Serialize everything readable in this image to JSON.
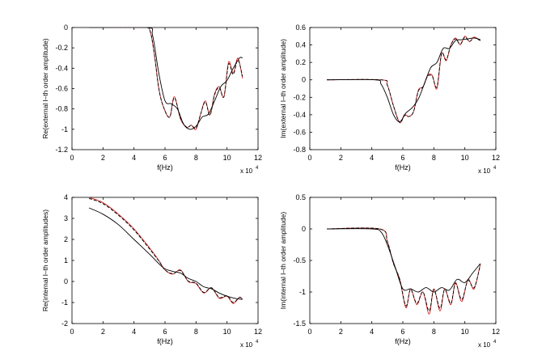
{
  "chart_data": [
    {
      "type": "line",
      "xlabel": "f(Hz)",
      "ylabel": "Re(external l–th order amplitude)",
      "x_multiplier": "x 10",
      "x_exponent": "4",
      "xlim": [
        0,
        12
      ],
      "ylim": [
        -1.2,
        0
      ],
      "xticks": [
        0,
        2,
        4,
        6,
        8,
        10,
        12
      ],
      "xtick_labels": [
        "0",
        "2",
        "4",
        "6",
        "8",
        "10",
        "12"
      ],
      "yticks": [
        -1.2,
        -1,
        -0.8,
        -0.6,
        -0.4,
        -0.2,
        0
      ],
      "ytick_labels": [
        "-1.2",
        "-1",
        "-0.8",
        "-0.6",
        "-0.4",
        "-0.2",
        "0"
      ],
      "grid": false,
      "series": [
        {
          "color": "#d62020",
          "dash": "solid",
          "x": [
            1.1,
            4.5,
            5.0,
            5.3,
            5.6,
            5.9,
            6.3,
            6.6,
            7.0,
            7.4,
            7.7,
            8.0,
            8.3,
            8.6,
            8.9,
            9.2,
            9.5,
            9.8,
            10.1,
            10.4,
            10.7,
            11.0
          ],
          "y": [
            0,
            0,
            -0.02,
            -0.25,
            -0.6,
            -0.78,
            -0.88,
            -0.68,
            -0.9,
            -0.98,
            -0.96,
            -1.0,
            -0.85,
            -0.72,
            -0.86,
            -0.65,
            -0.58,
            -0.68,
            -0.34,
            -0.45,
            -0.3,
            -0.5
          ]
        },
        {
          "color": "#000000",
          "dash": "dashed",
          "x": [
            1.1,
            4.5,
            5.0,
            5.3,
            5.6,
            5.9,
            6.3,
            6.6,
            7.0,
            7.4,
            7.7,
            8.0,
            8.3,
            8.6,
            8.9,
            9.2,
            9.5,
            9.8,
            10.1,
            10.4,
            10.7,
            11.0
          ],
          "y": [
            0,
            0,
            -0.02,
            -0.25,
            -0.6,
            -0.78,
            -0.88,
            -0.69,
            -0.89,
            -0.98,
            -0.96,
            -0.99,
            -0.85,
            -0.73,
            -0.86,
            -0.66,
            -0.59,
            -0.68,
            -0.36,
            -0.46,
            -0.32,
            -0.48
          ]
        },
        {
          "color": "#000000",
          "dash": "solid",
          "x": [
            1.1,
            4.8,
            5.2,
            5.6,
            6.0,
            6.4,
            6.8,
            7.2,
            7.6,
            8.0,
            8.4,
            8.8,
            9.2,
            9.6,
            10.0,
            10.4,
            10.8,
            11.0
          ],
          "y": [
            0,
            0,
            -0.08,
            -0.45,
            -0.72,
            -0.75,
            -0.8,
            -0.95,
            -1.0,
            -0.97,
            -0.88,
            -0.85,
            -0.72,
            -0.58,
            -0.52,
            -0.4,
            -0.3,
            -0.3
          ]
        }
      ]
    },
    {
      "type": "line",
      "xlabel": "f(Hz)",
      "ylabel": "Im(external l–th order amplitude)",
      "x_multiplier": "x 10",
      "x_exponent": "4",
      "xlim": [
        0,
        12
      ],
      "ylim": [
        -0.8,
        0.6
      ],
      "xticks": [
        0,
        2,
        4,
        6,
        8,
        10,
        12
      ],
      "xtick_labels": [
        "0",
        "2",
        "4",
        "6",
        "8",
        "10",
        "12"
      ],
      "yticks": [
        -0.8,
        -0.6,
        -0.4,
        -0.2,
        0,
        0.2,
        0.4,
        0.6
      ],
      "ytick_labels": [
        "-0.8",
        "-0.6",
        "-0.4",
        "-0.2",
        "0",
        "0.2",
        "0.4",
        "0.6"
      ],
      "grid": false,
      "series": [
        {
          "color": "#d62020",
          "dash": "solid",
          "x": [
            1.1,
            4.6,
            5.0,
            5.4,
            5.8,
            6.1,
            6.4,
            6.7,
            7.0,
            7.3,
            7.6,
            7.9,
            8.2,
            8.5,
            8.8,
            9.1,
            9.4,
            9.7,
            10.0,
            10.3,
            10.6,
            11.0
          ],
          "y": [
            0,
            0,
            -0.06,
            -0.3,
            -0.49,
            -0.4,
            -0.42,
            -0.36,
            -0.12,
            -0.08,
            0.05,
            0.05,
            -0.1,
            0.3,
            0.22,
            0.4,
            0.48,
            0.4,
            0.5,
            0.44,
            0.49,
            0.45
          ]
        },
        {
          "color": "#000000",
          "dash": "dashed",
          "x": [
            1.1,
            4.6,
            5.0,
            5.4,
            5.8,
            6.1,
            6.4,
            6.7,
            7.0,
            7.3,
            7.6,
            7.9,
            8.2,
            8.5,
            8.8,
            9.1,
            9.4,
            9.7,
            10.0,
            10.3,
            10.6,
            11.0
          ],
          "y": [
            0,
            0,
            -0.06,
            -0.3,
            -0.49,
            -0.41,
            -0.42,
            -0.36,
            -0.13,
            -0.08,
            0.04,
            0.04,
            -0.08,
            0.3,
            0.23,
            0.4,
            0.47,
            0.41,
            0.49,
            0.44,
            0.48,
            0.45
          ]
        },
        {
          "color": "#000000",
          "dash": "solid",
          "x": [
            1.1,
            4.2,
            4.6,
            5.0,
            5.4,
            5.8,
            6.2,
            6.6,
            7.0,
            7.4,
            7.8,
            8.2,
            8.6,
            9.0,
            9.4,
            9.8,
            10.2,
            10.6,
            11.0
          ],
          "y": [
            0,
            0,
            -0.05,
            -0.2,
            -0.4,
            -0.48,
            -0.38,
            -0.32,
            -0.22,
            -0.04,
            0.14,
            0.2,
            0.36,
            0.36,
            0.45,
            0.46,
            0.47,
            0.48,
            0.46
          ]
        }
      ]
    },
    {
      "type": "line",
      "xlabel": "f(Hz)",
      "ylabel": "Re(internal l–th order amplitudes)",
      "x_multiplier": "x 10",
      "x_exponent": "4",
      "xlim": [
        0,
        12
      ],
      "ylim": [
        -2,
        4
      ],
      "xticks": [
        0,
        2,
        4,
        6,
        8,
        10,
        12
      ],
      "xtick_labels": [
        "0",
        "2",
        "4",
        "6",
        "8",
        "10",
        "12"
      ],
      "yticks": [
        -2,
        -1,
        0,
        1,
        2,
        3,
        4
      ],
      "ytick_labels": [
        "-2",
        "-1",
        "0",
        "1",
        "2",
        "3",
        "4"
      ],
      "grid": false,
      "series": [
        {
          "color": "#d62020",
          "dash": "solid",
          "x": [
            1.1,
            2.0,
            3.0,
            4.0,
            5.0,
            5.6,
            6.0,
            6.5,
            7.0,
            7.5,
            8.0,
            8.5,
            9.0,
            9.5,
            10.0,
            10.4,
            10.8,
            11.0
          ],
          "y": [
            4.0,
            3.75,
            3.2,
            2.5,
            1.6,
            1.0,
            0.55,
            0.35,
            0.55,
            0.0,
            -0.1,
            -0.55,
            -0.3,
            -0.8,
            -0.7,
            -1.05,
            -0.75,
            -0.85
          ]
        },
        {
          "color": "#000000",
          "dash": "dashed",
          "x": [
            1.1,
            2.0,
            3.0,
            4.0,
            5.0,
            5.6,
            6.0,
            6.5,
            7.0,
            7.5,
            8.0,
            8.5,
            9.0,
            9.5,
            10.0,
            10.4,
            10.8,
            11.0
          ],
          "y": [
            3.95,
            3.7,
            3.15,
            2.45,
            1.55,
            0.98,
            0.55,
            0.37,
            0.52,
            0.02,
            -0.08,
            -0.52,
            -0.3,
            -0.76,
            -0.68,
            -1.0,
            -0.75,
            -0.85
          ]
        },
        {
          "color": "#000000",
          "dash": "solid",
          "x": [
            1.1,
            2.0,
            3.0,
            4.0,
            5.0,
            5.6,
            6.0,
            6.5,
            7.0,
            7.5,
            8.0,
            8.5,
            9.0,
            9.5,
            10.0,
            10.5,
            11.0
          ],
          "y": [
            3.5,
            3.2,
            2.7,
            2.0,
            1.3,
            0.85,
            0.6,
            0.48,
            0.4,
            0.15,
            0.0,
            -0.25,
            -0.35,
            -0.55,
            -0.7,
            -0.8,
            -0.85
          ]
        }
      ]
    },
    {
      "type": "line",
      "xlabel": "f(Hz)",
      "ylabel": "Im(internal l–th order amplitude)",
      "x_multiplier": "x 10",
      "x_exponent": "4",
      "xlim": [
        0,
        12
      ],
      "ylim": [
        -1.5,
        0.5
      ],
      "xticks": [
        0,
        2,
        4,
        6,
        8,
        10,
        12
      ],
      "xtick_labels": [
        "0",
        "2",
        "4",
        "6",
        "8",
        "10",
        "12"
      ],
      "yticks": [
        -1.5,
        -1,
        -0.5,
        0,
        0.5
      ],
      "ytick_labels": [
        "-1.5",
        "-1",
        "-0.5",
        "0",
        "0.5"
      ],
      "grid": false,
      "series": [
        {
          "color": "#d62020",
          "dash": "solid",
          "x": [
            1.1,
            4.5,
            5.0,
            5.4,
            5.8,
            6.2,
            6.5,
            6.9,
            7.3,
            7.7,
            8.0,
            8.4,
            8.7,
            9.1,
            9.4,
            9.8,
            10.2,
            10.6,
            11.0
          ],
          "y": [
            0,
            0,
            -0.2,
            -0.55,
            -0.8,
            -1.25,
            -0.95,
            -1.2,
            -1.0,
            -1.35,
            -0.95,
            -1.3,
            -0.95,
            -1.2,
            -0.85,
            -1.15,
            -0.8,
            -0.95,
            -0.55
          ]
        },
        {
          "color": "#000000",
          "dash": "dashed",
          "x": [
            1.1,
            4.5,
            5.0,
            5.4,
            5.8,
            6.2,
            6.5,
            6.9,
            7.3,
            7.7,
            8.0,
            8.4,
            8.7,
            9.1,
            9.4,
            9.8,
            10.2,
            10.6,
            11.0
          ],
          "y": [
            0,
            0,
            -0.2,
            -0.55,
            -0.8,
            -1.22,
            -0.96,
            -1.18,
            -1.0,
            -1.3,
            -0.96,
            -1.26,
            -0.96,
            -1.18,
            -0.86,
            -1.12,
            -0.82,
            -0.93,
            -0.57
          ]
        },
        {
          "color": "#000000",
          "dash": "solid",
          "x": [
            1.1,
            4.0,
            4.6,
            5.0,
            5.5,
            6.0,
            6.5,
            7.0,
            7.5,
            8.0,
            8.5,
            9.0,
            9.5,
            10.0,
            10.5,
            11.0
          ],
          "y": [
            0,
            0,
            -0.05,
            -0.25,
            -0.6,
            -0.95,
            -0.95,
            -1.0,
            -0.93,
            -1.0,
            -0.93,
            -0.97,
            -0.8,
            -0.85,
            -0.7,
            -0.55
          ]
        }
      ]
    }
  ]
}
